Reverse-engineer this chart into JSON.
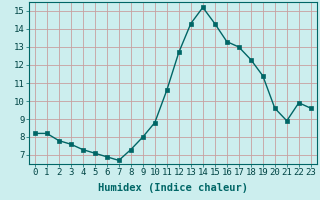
{
  "x": [
    0,
    1,
    2,
    3,
    4,
    5,
    6,
    7,
    8,
    9,
    10,
    11,
    12,
    13,
    14,
    15,
    16,
    17,
    18,
    19,
    20,
    21,
    22,
    23
  ],
  "y": [
    8.2,
    8.2,
    7.8,
    7.6,
    7.3,
    7.1,
    6.9,
    6.7,
    7.3,
    8.0,
    8.8,
    10.6,
    12.7,
    14.3,
    15.2,
    14.3,
    13.3,
    13.0,
    12.3,
    11.4,
    9.6,
    8.9,
    9.9,
    9.6
  ],
  "line_color": "#006666",
  "marker_color": "#006666",
  "bg_color": "#cceeee",
  "grid_color": "#c8a0a0",
  "xlabel": "Humidex (Indice chaleur)",
  "xlim": [
    -0.5,
    23.5
  ],
  "ylim": [
    6.5,
    15.5
  ],
  "yticks": [
    7,
    8,
    9,
    10,
    11,
    12,
    13,
    14,
    15
  ],
  "xticks": [
    0,
    1,
    2,
    3,
    4,
    5,
    6,
    7,
    8,
    9,
    10,
    11,
    12,
    13,
    14,
    15,
    16,
    17,
    18,
    19,
    20,
    21,
    22,
    23
  ],
  "xlabel_fontsize": 7.5,
  "tick_fontsize": 6.5,
  "marker_size": 2.5,
  "line_width": 1.0
}
